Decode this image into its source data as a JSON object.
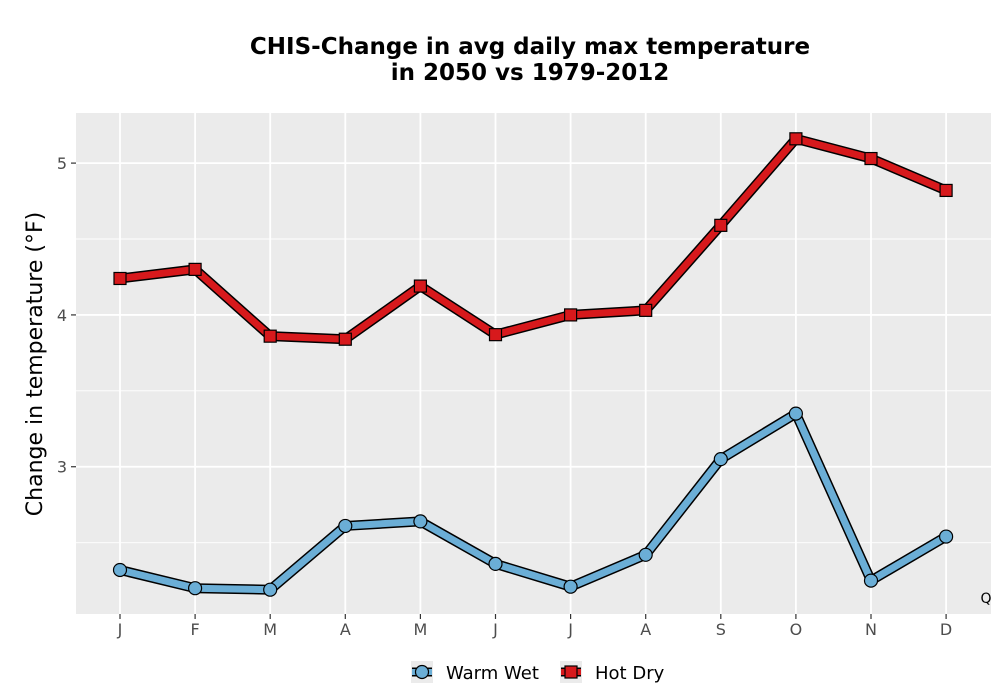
{
  "chart_data": {
    "type": "line",
    "title": "CHIS-Change in avg daily max temperature",
    "subtitle": "in 2050 vs 1979-2012",
    "xlabel": "",
    "ylabel": "Change in temperature (°F)",
    "categories": [
      "J",
      "F",
      "M",
      "A",
      "M",
      "J",
      "J",
      "A",
      "S",
      "O",
      "N",
      "D"
    ],
    "ylim": [
      2.03,
      5.33
    ],
    "yticks": [
      3,
      4,
      5
    ],
    "grid": true,
    "legend_position": "bottom",
    "annotation": "Q",
    "series": [
      {
        "name": "Warm Wet",
        "marker": "circle",
        "color": "#6baed6",
        "values": [
          2.32,
          2.2,
          2.19,
          2.61,
          2.64,
          2.36,
          2.21,
          2.42,
          3.05,
          3.35,
          2.25,
          2.54
        ]
      },
      {
        "name": "Hot Dry",
        "marker": "square",
        "color": "#d7191c",
        "values": [
          4.24,
          4.3,
          3.86,
          3.84,
          4.19,
          3.87,
          4.0,
          4.03,
          4.59,
          5.16,
          5.03,
          4.82
        ]
      }
    ]
  }
}
